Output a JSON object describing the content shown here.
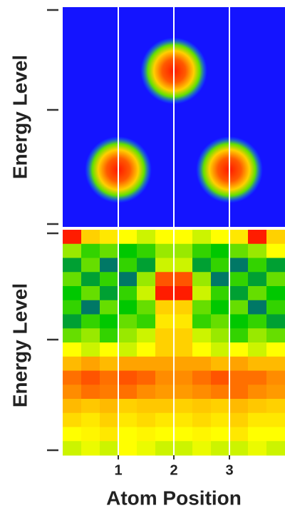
{
  "chart_data": [
    {
      "type": "blobs",
      "ylabel": "Energy Level",
      "x": [
        1,
        2,
        3
      ],
      "values": [
        0.26,
        0.71,
        0.26
      ],
      "spread": 0.6,
      "xlim": [
        0,
        4
      ],
      "ylim": [
        0,
        1
      ],
      "xticks": [
        1,
        2,
        3
      ],
      "background": "#1414ff",
      "grid": true
    },
    {
      "type": "heatmap",
      "ylabel": "Energy Level",
      "xlabel": "Atom Position",
      "xlim": [
        0,
        4
      ],
      "xticks": [
        1,
        2,
        3
      ],
      "grid": true,
      "colormap": [
        "#0000ff",
        "#00c800",
        "#ffff00",
        "#ff8c00",
        "#ff0000"
      ],
      "z": [
        [
          0.95,
          0.6,
          0.55,
          0.5,
          0.45,
          0.5,
          0.5,
          0.45,
          0.5,
          0.55,
          0.95,
          0.6
        ],
        [
          0.4,
          0.3,
          0.35,
          0.25,
          0.3,
          0.4,
          0.4,
          0.3,
          0.25,
          0.35,
          0.4,
          0.5
        ],
        [
          0.2,
          0.35,
          0.15,
          0.3,
          0.2,
          0.45,
          0.45,
          0.2,
          0.3,
          0.15,
          0.3,
          0.2
        ],
        [
          0.35,
          0.2,
          0.3,
          0.15,
          0.4,
          0.85,
          0.85,
          0.4,
          0.15,
          0.3,
          0.2,
          0.35
        ],
        [
          0.25,
          0.35,
          0.2,
          0.3,
          0.45,
          0.95,
          0.95,
          0.45,
          0.3,
          0.2,
          0.35,
          0.25
        ],
        [
          0.3,
          0.15,
          0.35,
          0.25,
          0.35,
          0.6,
          0.6,
          0.35,
          0.25,
          0.35,
          0.15,
          0.3
        ],
        [
          0.2,
          0.3,
          0.25,
          0.35,
          0.3,
          0.55,
          0.55,
          0.3,
          0.35,
          0.25,
          0.3,
          0.2
        ],
        [
          0.35,
          0.4,
          0.3,
          0.4,
          0.45,
          0.6,
          0.6,
          0.45,
          0.4,
          0.3,
          0.4,
          0.35
        ],
        [
          0.5,
          0.45,
          0.5,
          0.45,
          0.5,
          0.6,
          0.6,
          0.5,
          0.45,
          0.5,
          0.45,
          0.5
        ],
        [
          0.65,
          0.7,
          0.65,
          0.7,
          0.7,
          0.7,
          0.7,
          0.7,
          0.65,
          0.7,
          0.65,
          0.65
        ],
        [
          0.8,
          0.85,
          0.8,
          0.85,
          0.82,
          0.75,
          0.75,
          0.8,
          0.85,
          0.8,
          0.8,
          0.75
        ],
        [
          0.75,
          0.8,
          0.78,
          0.8,
          0.75,
          0.72,
          0.72,
          0.75,
          0.78,
          0.8,
          0.75,
          0.72
        ],
        [
          0.65,
          0.62,
          0.65,
          0.6,
          0.62,
          0.62,
          0.6,
          0.62,
          0.6,
          0.65,
          0.62,
          0.6
        ],
        [
          0.58,
          0.55,
          0.6,
          0.55,
          0.58,
          0.55,
          0.55,
          0.58,
          0.55,
          0.6,
          0.55,
          0.55
        ],
        [
          0.5,
          0.52,
          0.55,
          0.5,
          0.52,
          0.5,
          0.5,
          0.52,
          0.5,
          0.55,
          0.5,
          0.5
        ],
        [
          0.45,
          0.48,
          0.45,
          0.5,
          0.48,
          0.45,
          0.45,
          0.48,
          0.45,
          0.45,
          0.48,
          0.45
        ]
      ]
    }
  ]
}
